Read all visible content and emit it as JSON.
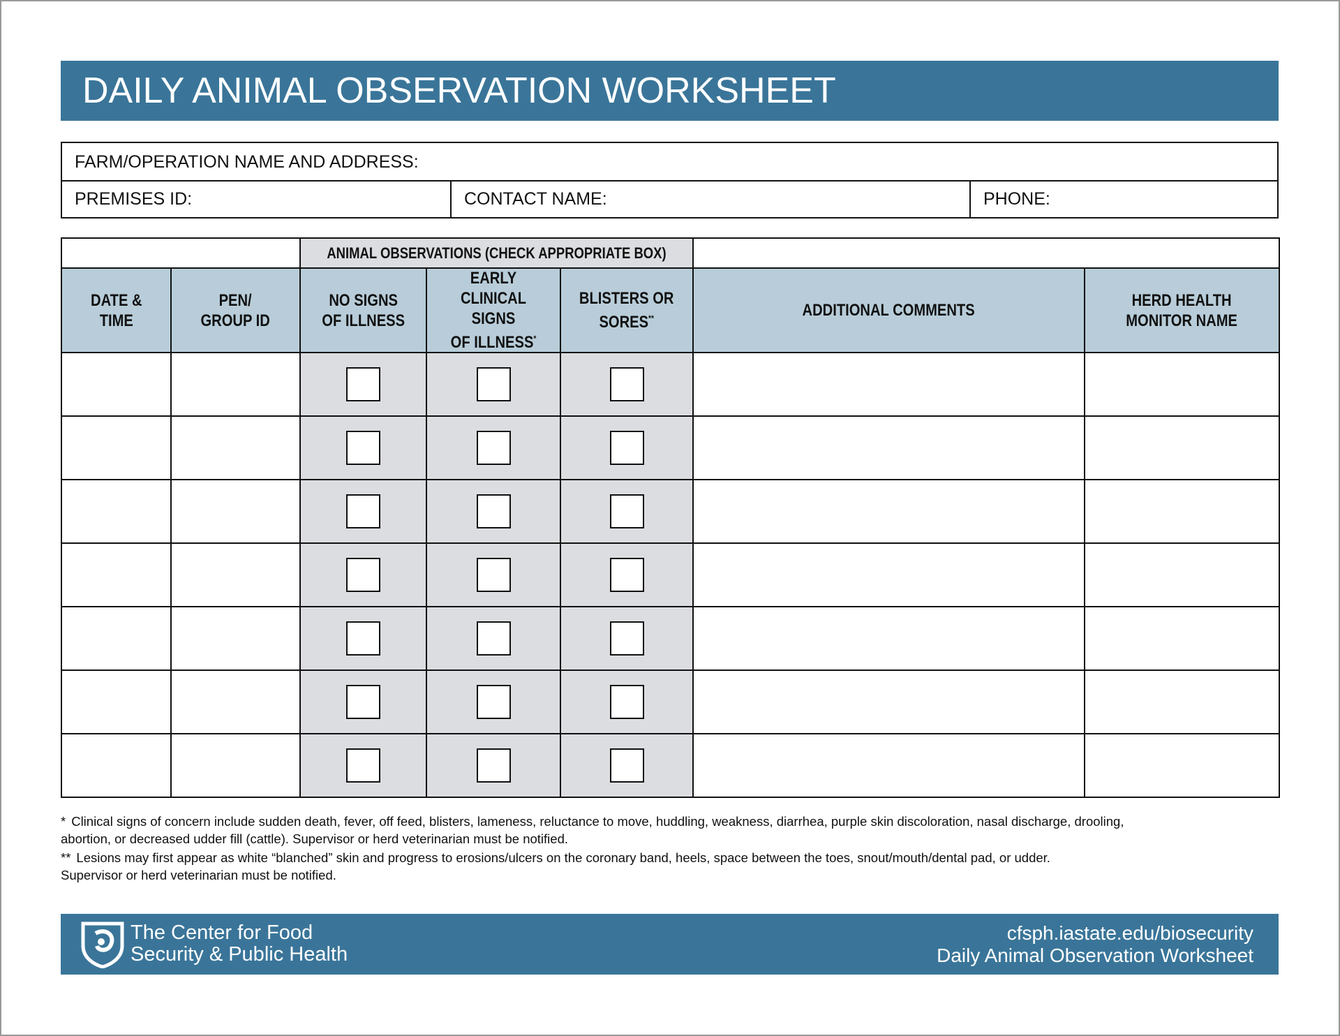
{
  "header": {
    "title": "DAILY ANIMAL OBSERVATION WORKSHEET"
  },
  "info": {
    "farm": "FARM/OPERATION NAME AND ADDRESS:",
    "premises": "PREMISES ID:",
    "contact": "CONTACT NAME:",
    "phone": "PHONE:"
  },
  "table": {
    "group_header": "ANIMAL OBSERVATIONS (CHECK APPROPRIATE BOX)",
    "columns": [
      {
        "lines": [
          "DATE &",
          "TIME"
        ]
      },
      {
        "lines": [
          "PEN/",
          "GROUP ID"
        ]
      },
      {
        "lines": [
          "NO SIGNS",
          "OF ILLNESS"
        ]
      },
      {
        "lines": [
          "EARLY CLINICAL",
          "SIGNS",
          "OF ILLNESS"
        ],
        "mark": "*"
      },
      {
        "lines": [
          "BLISTERS OR",
          "SORES"
        ],
        "mark": "**"
      },
      {
        "lines": [
          "ADDITIONAL COMMENTS"
        ]
      },
      {
        "lines": [
          "HERD HEALTH",
          "MONITOR NAME"
        ]
      }
    ]
  },
  "footnotes": [
    {
      "mark": "*",
      "lines": [
        "Clinical signs of concern include sudden death, fever, off feed, blisters, lameness, reluctance to move, huddling, weakness, diarrhea, purple skin discoloration, nasal discharge, drooling,",
        "abortion, or decreased udder fill (cattle). Supervisor or herd veterinarian must be notified."
      ]
    },
    {
      "mark": "**",
      "lines": [
        "Lesions may first appear as white “blanched” skin and progress to erosions/ulcers on the coronary band, heels, space between the toes, snout/mouth/dental pad, or udder.",
        "Supervisor or herd veterinarian must be notified."
      ]
    }
  ],
  "footer": {
    "org_lines": [
      "The Center for Food",
      "Security & Public Health"
    ],
    "url": "cfsph.iastate.edu/biosecurity",
    "doc_name": "Daily Animal Observation Worksheet"
  }
}
